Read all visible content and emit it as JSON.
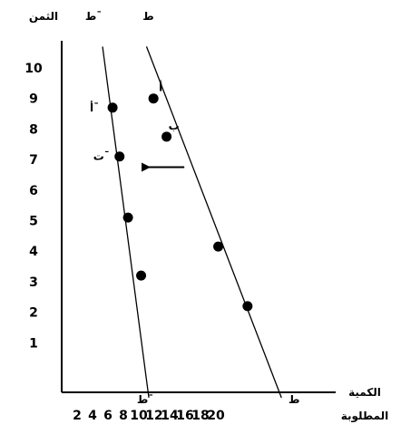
{
  "chart_data": {
    "type": "line",
    "y_axis_label": "الثمن",
    "x_axis_label_line1": "الكمية",
    "x_axis_label_line2": "المطلوبة",
    "y_ticks": [
      "1",
      "2",
      "3",
      "4",
      "5",
      "6",
      "7",
      "8",
      "9",
      "10"
    ],
    "x_ticks": [
      "2",
      "4",
      "6",
      "8",
      "10",
      "12",
      "14",
      "16",
      "18",
      "20"
    ],
    "xlim": [
      0,
      22
    ],
    "ylim": [
      0,
      11
    ],
    "series": [
      {
        "name": "ط",
        "line": [
          [
            11,
            10.7
          ],
          [
            28.5,
            -0.8
          ]
        ],
        "top_label": "ط",
        "bottom_label": "ط",
        "points": [
          {
            "x": 11.9,
            "y": 9.0,
            "label": "أ"
          },
          {
            "x": 13.6,
            "y": 7.75,
            "label": "ب"
          },
          {
            "x": 20.3,
            "y": 4.15,
            "label": ""
          },
          {
            "x": 24.1,
            "y": 2.2,
            "label": ""
          }
        ]
      },
      {
        "name": "ط¯",
        "line": [
          [
            5.3,
            10.7
          ],
          [
            11.3,
            -0.8
          ]
        ],
        "top_label": "ط¯",
        "bottom_label": "ط¯",
        "points": [
          {
            "x": 6.6,
            "y": 8.7,
            "label": "أ¯"
          },
          {
            "x": 7.5,
            "y": 7.1,
            "label": "ت¯"
          },
          {
            "x": 8.6,
            "y": 5.1,
            "label": ""
          },
          {
            "x": 10.3,
            "y": 3.2,
            "label": ""
          }
        ]
      }
    ],
    "arrow": {
      "from": [
        15.9,
        6.75
      ],
      "to": [
        11.3,
        6.75
      ]
    }
  }
}
